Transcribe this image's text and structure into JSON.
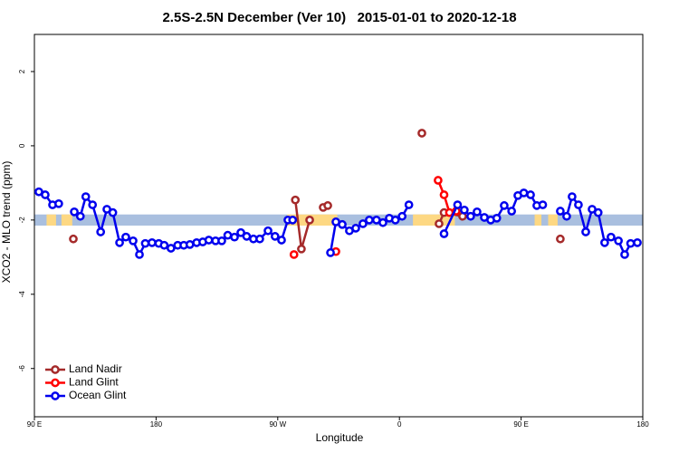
{
  "chart_data": {
    "type": "line",
    "title": "2.5S-2.5N December (Ver 10)   2015-01-01 to 2020-12-18",
    "x_label": "Longitude",
    "y_label": "XCO2 - MLO trend (ppm)",
    "xlim": [
      90,
      540
    ],
    "ylim": [
      -7.3,
      3.0
    ],
    "xticks": [
      {
        "value": 90,
        "label": "90 E"
      },
      180,
      {
        "value": 270,
        "label": "90 W"
      },
      {
        "value": 360,
        "label": "0"
      },
      {
        "value": 450,
        "label": "90 E"
      },
      {
        "value": 540,
        "label": "180"
      }
    ],
    "yticks": [
      -6,
      -4,
      -2,
      0,
      2
    ],
    "legend": "bottom-left",
    "band": {
      "ylim": [
        -2.15,
        -1.85
      ],
      "color": "#a9bfdf"
    },
    "land_segments": {
      "color": "#fdd883",
      "ranges": [
        [
          99,
          106
        ],
        [
          110,
          118
        ],
        [
          277,
          314
        ],
        [
          370,
          401
        ],
        [
          460,
          465
        ],
        [
          470,
          477
        ]
      ]
    },
    "series": [
      {
        "name": "Land Nadir",
        "color": "#a52a2a",
        "x": [
          118.8,
          null,
          283,
          287.5,
          293.6,
          null,
          303.6,
          307,
          null,
          376.6,
          null,
          389.3,
          393,
          406.7,
          null,
          479
        ],
        "values": [
          -2.51,
          null,
          -1.46,
          -2.78,
          -2.0,
          null,
          -1.66,
          -1.61,
          null,
          0.34,
          null,
          -2.1,
          -1.8,
          -1.9,
          null,
          -2.51
        ]
      },
      {
        "name": "Land Glint",
        "color": "#ff0000",
        "x": [
          282,
          null,
          313,
          null,
          388.6,
          393,
          397,
          402
        ],
        "values": [
          -2.93,
          null,
          -2.85,
          null,
          -0.93,
          -1.32,
          -1.8,
          -1.76
        ]
      },
      {
        "name": "Ocean Glint",
        "color": "#0000ee",
        "x": [
          93.3,
          98,
          103.4,
          108,
          null,
          119.5,
          124,
          128,
          133,
          139,
          143.6,
          148,
          153,
          157.6,
          163,
          167.7,
          172,
          177,
          182,
          186,
          191,
          196,
          200.5,
          205,
          210,
          214.5,
          219,
          224,
          228.6,
          233,
          238,
          242.7,
          247,
          252,
          256.7,
          262.8,
          268,
          272.8,
          277.5,
          281,
          null,
          309,
          313,
          317.7,
          323,
          327.7,
          333,
          337.7,
          343,
          347.8,
          352.5,
          357,
          362,
          367,
          null,
          393,
          403,
          408,
          412.7,
          417.4,
          422.8,
          427.5,
          432,
          437.5,
          443,
          447.6,
          452,
          457,
          461.6,
          466,
          null,
          479,
          483.7,
          487.7,
          492.4,
          497.8,
          502.5,
          507,
          511.8,
          516.5,
          522,
          526.6,
          531,
          536
        ],
        "values": [
          -1.24,
          -1.32,
          -1.59,
          -1.56,
          null,
          -1.78,
          -1.9,
          -1.37,
          -1.59,
          -2.32,
          -1.71,
          -1.8,
          -2.61,
          -2.46,
          -2.56,
          -2.93,
          -2.63,
          -2.61,
          -2.63,
          -2.68,
          -2.76,
          -2.68,
          -2.68,
          -2.66,
          -2.61,
          -2.59,
          -2.54,
          -2.56,
          -2.56,
          -2.41,
          -2.46,
          -2.34,
          -2.44,
          -2.51,
          -2.51,
          -2.29,
          -2.44,
          -2.54,
          -2.0,
          -2.0,
          null,
          -2.88,
          -2.05,
          -2.12,
          -2.29,
          -2.22,
          -2.1,
          -2.0,
          -2.0,
          -2.07,
          -1.95,
          -2.0,
          -1.9,
          -1.59,
          null,
          -2.37,
          -1.59,
          -1.73,
          -1.9,
          -1.78,
          -1.93,
          -2.0,
          -1.95,
          -1.61,
          -1.76,
          -1.34,
          -1.27,
          -1.32,
          -1.61,
          -1.59,
          null,
          -1.76,
          -1.9,
          -1.37,
          -1.59,
          -2.32,
          -1.71,
          -1.8,
          -2.61,
          -2.46,
          -2.56,
          -2.93,
          -2.63,
          -2.61
        ]
      }
    ]
  }
}
